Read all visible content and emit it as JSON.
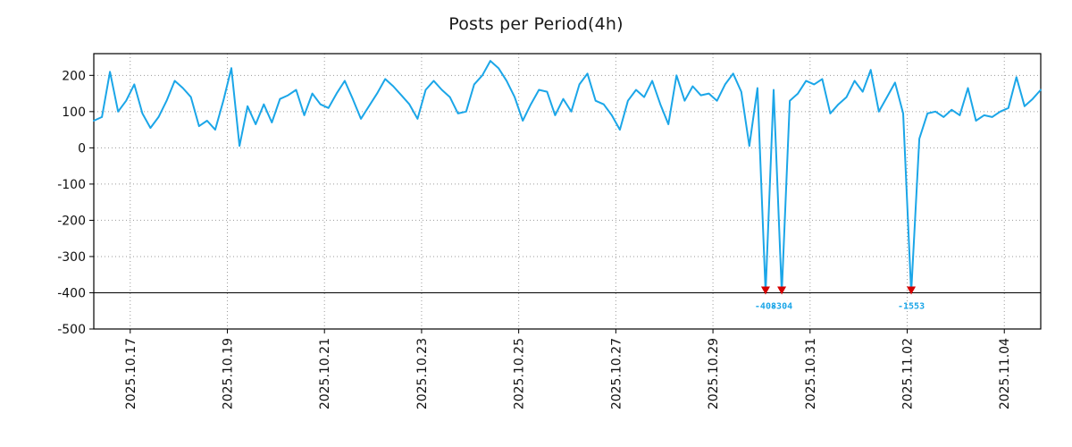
{
  "title": "Posts per Period(4h)",
  "colors": {
    "line": "#1ba6e8",
    "spike_marker": "#d40000",
    "spike_label": "#1ba6e8",
    "grid": "#9a9a9a",
    "axis": "#000000",
    "title": "#1a1a1a"
  },
  "chart_data": {
    "type": "line",
    "title": "Posts per Period(4h)",
    "x_start": "2025-10-16 06:00",
    "step_hours": 4,
    "ylim": [
      -500,
      260
    ],
    "clip_min": -400,
    "baseline_y": -400,
    "grid": true,
    "legend": "none",
    "y_ticks": [
      200,
      100,
      0,
      -100,
      -200,
      -300,
      -400,
      -500
    ],
    "x_ticks": [
      {
        "hours": 18,
        "label": "2025.10.17"
      },
      {
        "hours": 66,
        "label": "2025.10.19"
      },
      {
        "hours": 114,
        "label": "2025.10.21"
      },
      {
        "hours": 162,
        "label": "2025.10.23"
      },
      {
        "hours": 210,
        "label": "2025.10.25"
      },
      {
        "hours": 258,
        "label": "2025.10.27"
      },
      {
        "hours": 306,
        "label": "2025.10.29"
      },
      {
        "hours": 354,
        "label": "2025.10.31"
      },
      {
        "hours": 402,
        "label": "2025.11.02"
      },
      {
        "hours": 450,
        "label": "2025.11.04"
      }
    ],
    "values": [
      75,
      85,
      210,
      100,
      130,
      175,
      95,
      55,
      85,
      130,
      185,
      165,
      140,
      60,
      75,
      50,
      130,
      220,
      5,
      115,
      65,
      120,
      70,
      135,
      145,
      160,
      90,
      150,
      120,
      110,
      150,
      185,
      135,
      80,
      115,
      150,
      190,
      170,
      145,
      120,
      80,
      160,
      185,
      160,
      140,
      95,
      100,
      175,
      200,
      240,
      220,
      185,
      140,
      75,
      120,
      160,
      155,
      90,
      135,
      100,
      175,
      205,
      130,
      120,
      90,
      50,
      130,
      160,
      140,
      185,
      120,
      65,
      200,
      130,
      170,
      145,
      150,
      130,
      175,
      205,
      155,
      5,
      165,
      -408,
      160,
      -304,
      130,
      150,
      185,
      175,
      190,
      95,
      120,
      140,
      185,
      155,
      215,
      100,
      140,
      180,
      95,
      -1553,
      25,
      95,
      100,
      85,
      105,
      90,
      165,
      75,
      90,
      85,
      100,
      110,
      195,
      115,
      135,
      160
    ],
    "spikes": [
      {
        "index": 83,
        "value": -408,
        "label": "-408"
      },
      {
        "index": 85,
        "value": -304,
        "label": "-304"
      },
      {
        "index": 101,
        "value": -1553,
        "label": "-1553"
      }
    ]
  }
}
